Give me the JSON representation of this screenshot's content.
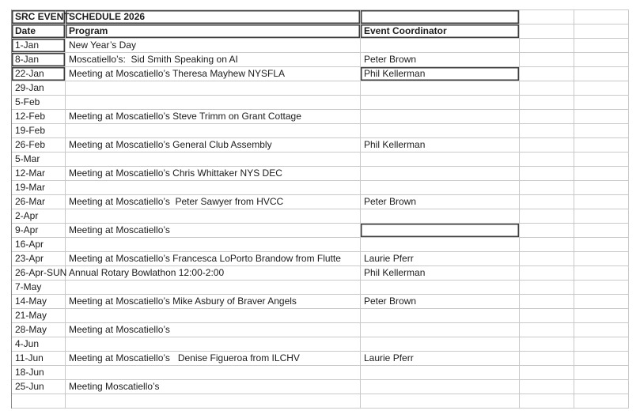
{
  "colors": {
    "background": "#ffffff",
    "gridline": "#c9c9c9",
    "dark_cell_border": "#3d3d3d",
    "text": "#1c1c1c"
  },
  "table": {
    "title": {
      "left": "SRC EVENT",
      "main": "SCHEDULE 2026"
    },
    "headers": {
      "date": "Date",
      "program": "Program",
      "coordinator": "Event Coordinator"
    },
    "rows": [
      {
        "date": "1-Jan",
        "program": "New Year’s Day",
        "coordinator": "",
        "date_boxed": true
      },
      {
        "date": "8-Jan",
        "program": "Moscatiello’s:  Sid Smith Speaking on AI",
        "coordinator": "Peter Brown",
        "date_boxed": true
      },
      {
        "date": "22-Jan",
        "program": "Meeting at Moscatiello’s Theresa Mayhew NYSFLA",
        "coordinator": "Phil Kellerman",
        "date_boxed": true,
        "coord_boxed": true
      },
      {
        "date": "29-Jan",
        "program": "",
        "coordinator": ""
      },
      {
        "date": "5-Feb",
        "program": "",
        "coordinator": ""
      },
      {
        "date": "12-Feb",
        "program": "Meeting at Moscatiello’s Steve Trimm on Grant Cottage",
        "coordinator": ""
      },
      {
        "date": "19-Feb",
        "program": "",
        "coordinator": ""
      },
      {
        "date": "26-Feb",
        "program": "Meeting at Moscatiello’s General Club Assembly",
        "coordinator": "Phil Kellerman"
      },
      {
        "date": "5-Mar",
        "program": "",
        "coordinator": ""
      },
      {
        "date": "12-Mar",
        "program": "Meeting at Moscatiello’s Chris Whittaker NYS DEC",
        "coordinator": ""
      },
      {
        "date": "19-Mar",
        "program": "",
        "coordinator": ""
      },
      {
        "date": "26-Mar",
        "program": "Meeting at Moscatiello’s  Peter Sawyer from HVCC",
        "coordinator": "Peter Brown"
      },
      {
        "date": "2-Apr",
        "program": "",
        "coordinator": ""
      },
      {
        "date": "9-Apr",
        "program": "Meeting at Moscatiello’s",
        "coordinator": "",
        "coord_boxed": true
      },
      {
        "date": "16-Apr",
        "program": "",
        "coordinator": ""
      },
      {
        "date": "23-Apr",
        "program": "Meeting at Moscatiello’s Francesca LoPorto Brandow from Flutte",
        "coordinator": "Laurie Pferr"
      },
      {
        "date": "26-Apr-SUN",
        "program": "Annual Rotary Bowlathon 12:00-2:00",
        "coordinator": "Phil Kellerman"
      },
      {
        "date": "7-May",
        "program": "",
        "coordinator": ""
      },
      {
        "date": "14-May",
        "program": "Meeting at Moscatiello’s Mike Asbury of Braver Angels",
        "coordinator": "Peter Brown"
      },
      {
        "date": "21-May",
        "program": "",
        "coordinator": ""
      },
      {
        "date": "28-May",
        "program": "Meeting at Moscatiello’s",
        "coordinator": ""
      },
      {
        "date": "4-Jun",
        "program": "",
        "coordinator": ""
      },
      {
        "date": "11-Jun",
        "program": "Meeting at Moscatiello’s   Denise Figueroa from ILCHV",
        "coordinator": "Laurie Pferr"
      },
      {
        "date": "18-Jun",
        "program": "",
        "coordinator": ""
      },
      {
        "date": "25-Jun",
        "program": "Meeting Moscatiello’s",
        "coordinator": ""
      },
      {
        "date": "",
        "program": "",
        "coordinator": ""
      }
    ]
  }
}
